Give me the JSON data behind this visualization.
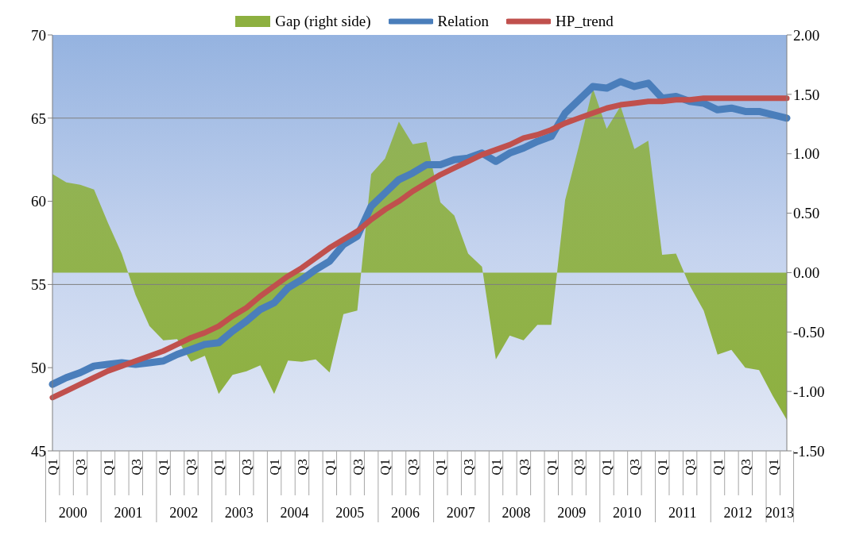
{
  "chart_data": {
    "type": "line",
    "categories": [
      "Q1",
      null,
      "Q3",
      null,
      "Q1",
      null,
      "Q3",
      null,
      "Q1",
      null,
      "Q3",
      null,
      "Q1",
      null,
      "Q3",
      null,
      "Q1",
      null,
      "Q3",
      null,
      "Q1",
      null,
      "Q3",
      null,
      "Q1",
      null,
      "Q3",
      null,
      "Q1",
      null,
      "Q3",
      null,
      "Q1",
      null,
      "Q3",
      null,
      "Q1",
      null,
      "Q3",
      null,
      "Q1",
      null,
      "Q3",
      null,
      "Q1",
      null,
      "Q3",
      null,
      "Q1",
      null,
      "Q3",
      null,
      "Q1",
      null
    ],
    "annotations": [
      "2000",
      "2001",
      "2002",
      "2003",
      "2004",
      "2005",
      "2006",
      "2007",
      "2008",
      "2009",
      "2010",
      "2011",
      "2012",
      "2013"
    ],
    "series": [
      {
        "name": "Gap (right side)",
        "type": "area",
        "axis": "y2",
        "color": "#8db040",
        "values": [
          0.83,
          0.76,
          0.74,
          0.7,
          0.42,
          0.16,
          -0.19,
          -0.45,
          -0.57,
          -0.56,
          -0.75,
          -0.7,
          -1.02,
          -0.86,
          -0.83,
          -0.78,
          -1.02,
          -0.74,
          -0.75,
          -0.73,
          -0.84,
          -0.35,
          -0.32,
          0.83,
          0.96,
          1.27,
          1.08,
          1.1,
          0.59,
          0.48,
          0.16,
          0.05,
          -0.73,
          -0.53,
          -0.57,
          -0.44,
          -0.44,
          0.61,
          1.07,
          1.55,
          1.21,
          1.4,
          1.04,
          1.11,
          0.15,
          0.16,
          -0.11,
          -0.32,
          -0.69,
          -0.65,
          -0.8,
          -0.82,
          -1.04,
          -1.24
        ]
      },
      {
        "name": "Relation",
        "color": "#4a7ebb",
        "values": [
          49.0,
          49.4,
          49.7,
          50.1,
          50.2,
          50.3,
          50.2,
          50.3,
          50.4,
          50.8,
          51.1,
          51.4,
          51.5,
          52.2,
          52.8,
          53.5,
          53.9,
          54.8,
          55.3,
          55.9,
          56.4,
          57.4,
          57.9,
          59.7,
          60.5,
          61.3,
          61.7,
          62.2,
          62.2,
          62.5,
          62.6,
          62.9,
          62.4,
          62.9,
          63.2,
          63.6,
          63.9,
          65.3,
          66.1,
          66.9,
          66.8,
          67.2,
          66.9,
          67.1,
          66.2,
          66.3,
          66.0,
          65.9,
          65.5,
          65.6,
          65.4,
          65.4,
          65.2,
          65.0
        ]
      },
      {
        "name": "HP_trend",
        "color": "#c0504d",
        "values": [
          48.2,
          48.6,
          49.0,
          49.4,
          49.8,
          50.1,
          50.4,
          50.7,
          51.0,
          51.4,
          51.8,
          52.1,
          52.5,
          53.1,
          53.6,
          54.3,
          54.9,
          55.5,
          56.0,
          56.6,
          57.2,
          57.7,
          58.2,
          58.9,
          59.5,
          60.0,
          60.6,
          61.1,
          61.6,
          62.0,
          62.4,
          62.8,
          63.1,
          63.4,
          63.8,
          64.0,
          64.3,
          64.7,
          65.0,
          65.3,
          65.6,
          65.8,
          65.9,
          66.0,
          66.0,
          66.1,
          66.1,
          66.2,
          66.2,
          66.2,
          66.2,
          66.2,
          66.2,
          66.2
        ]
      }
    ],
    "ylim": [
      45,
      70
    ],
    "yticks": [
      45,
      50,
      55,
      60,
      65,
      70
    ],
    "y2lim": [
      -1.5,
      2
    ],
    "y2ticks": [
      {
        "value": -1.5,
        "label": "-1.50"
      },
      {
        "value": -1,
        "label": "-1.00"
      },
      {
        "value": -0.5,
        "label": "-0.50"
      },
      {
        "value": 0,
        "label": "0.00"
      },
      {
        "value": 0.5,
        "label": "0.50"
      },
      {
        "value": 1,
        "label": "1.00"
      },
      {
        "value": 1.5,
        "label": "1.50"
      },
      {
        "value": 2,
        "label": "2.00"
      }
    ],
    "ref_lines": [
      {
        "axis": "y",
        "value": 55,
        "color": "#7f7f7f"
      },
      {
        "axis": "y",
        "value": 65,
        "color": "#7f7f7f"
      }
    ],
    "marker": "none",
    "legend": "top"
  }
}
